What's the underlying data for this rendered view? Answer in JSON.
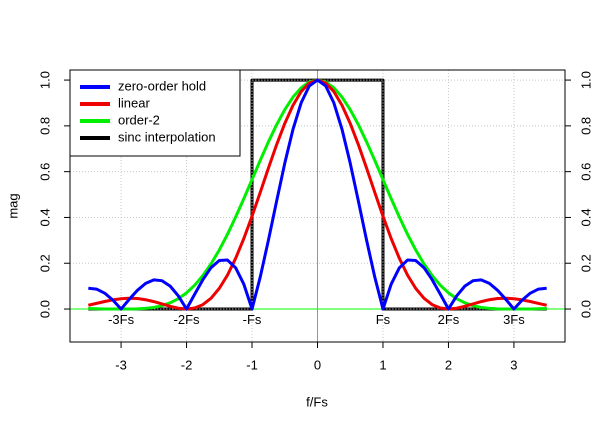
{
  "chart_data": {
    "type": "line",
    "x_label": "f/Fs",
    "y_label": "mag",
    "xlim": [
      -3.78,
      3.78
    ],
    "ylim": [
      -0.144,
      1.044
    ],
    "xticks": [
      -3,
      -2,
      -1,
      0,
      1,
      2,
      3
    ],
    "yticks": [
      {
        "value": 0,
        "label": "0.0"
      },
      {
        "value": 0.2,
        "label": "0.2"
      },
      {
        "value": 0.4,
        "label": "0.4"
      },
      {
        "value": 0.6,
        "label": "0.6"
      },
      {
        "value": 0.8,
        "label": "0.8"
      },
      {
        "value": 1,
        "label": "1.0"
      }
    ],
    "right_axis": true,
    "grid": true,
    "legend_position": "top-left",
    "reference_lines": {
      "color": "#00ff00",
      "x": 0,
      "y": 0
    },
    "annotations": [
      {
        "x": -3,
        "y": -0.05,
        "label": "-3Fs"
      },
      {
        "x": -2,
        "y": -0.05,
        "label": "-2Fs"
      },
      {
        "x": -1,
        "y": -0.05,
        "label": "-Fs"
      },
      {
        "x": 1,
        "y": -0.05,
        "label": "Fs"
      },
      {
        "x": 2,
        "y": -0.05,
        "label": "2Fs"
      },
      {
        "x": 3,
        "y": -0.05,
        "label": "3Fs"
      }
    ],
    "series": [
      {
        "name": "zero-order hold",
        "color": "#0000ff",
        "x": [
          -3.5,
          -3.375,
          -3.25,
          -3.125,
          -3,
          -2.875,
          -2.75,
          -2.625,
          -2.5,
          -2.375,
          -2.25,
          -2.125,
          -2,
          -1.875,
          -1.75,
          -1.625,
          -1.5,
          -1.375,
          -1.25,
          -1.125,
          -1,
          -0.875,
          -0.75,
          -0.625,
          -0.5,
          -0.375,
          -0.25,
          -0.125,
          0,
          0.125,
          0.25,
          0.375,
          0.5,
          0.625,
          0.75,
          0.875,
          1,
          1.125,
          1.25,
          1.375,
          1.5,
          1.625,
          1.75,
          1.875,
          2,
          2.125,
          2.25,
          2.375,
          2.5,
          2.625,
          2.75,
          2.875,
          3,
          3.125,
          3.25,
          3.375,
          3.5
        ],
        "values": [
          0.0909,
          0.0871,
          0.0693,
          0.039,
          0,
          0.0424,
          0.0818,
          0.112,
          0.1273,
          0.1238,
          0.1,
          0.0573,
          0,
          0.065,
          0.1286,
          0.181,
          0.2122,
          0.2139,
          0.1801,
          0.1083,
          0,
          0.1392,
          0.3001,
          0.4705,
          0.6366,
          0.7842,
          0.9003,
          0.9745,
          1,
          0.9745,
          0.9003,
          0.7842,
          0.6366,
          0.4705,
          0.3001,
          0.1392,
          0,
          0.1083,
          0.1801,
          0.2139,
          0.2122,
          0.181,
          0.1286,
          0.065,
          0,
          0.0573,
          0.1,
          0.1238,
          0.1273,
          0.112,
          0.0818,
          0.0424,
          0,
          0.039,
          0.0693,
          0.0871,
          0.0909
        ]
      },
      {
        "name": "linear",
        "color": "#ee0000",
        "x": [
          -3.5,
          -3.375,
          -3.25,
          -3.125,
          -3,
          -2.875,
          -2.75,
          -2.625,
          -2.5,
          -2.375,
          -2.25,
          -2.125,
          -2,
          -1.875,
          -1.75,
          -1.625,
          -1.5,
          -1.375,
          -1.25,
          -1.125,
          -1,
          -0.875,
          -0.75,
          -0.625,
          -0.5,
          -0.375,
          -0.25,
          -0.125,
          0,
          0.125,
          0.25,
          0.375,
          0.5,
          0.625,
          0.75,
          0.875,
          1,
          1.125,
          1.25,
          1.375,
          1.5,
          1.625,
          1.75,
          1.875,
          2,
          2.125,
          2.25,
          2.375,
          2.5,
          2.625,
          2.75,
          2.875,
          3,
          3.125,
          3.25,
          3.375,
          3.5
        ],
        "values": [
          0.0165,
          0.0246,
          0.0328,
          0.0399,
          0.045,
          0.0472,
          0.0458,
          0.0407,
          0.0324,
          0.0222,
          0.0117,
          0.0034,
          0,
          0.0044,
          0.0194,
          0.0474,
          0.0901,
          0.1482,
          0.2214,
          0.308,
          0.4053,
          0.5092,
          0.615,
          0.7173,
          0.8105,
          0.8895,
          0.9497,
          0.9872,
          1,
          0.9872,
          0.9497,
          0.8895,
          0.8105,
          0.7173,
          0.615,
          0.5092,
          0.4053,
          0.308,
          0.2214,
          0.1482,
          0.0901,
          0.0474,
          0.0194,
          0.0044,
          0,
          0.0034,
          0.0117,
          0.0222,
          0.0324,
          0.0407,
          0.0458,
          0.0472,
          0.045,
          0.0399,
          0.0328,
          0.0246,
          0.0165
        ]
      },
      {
        "name": "order-2",
        "color": "#00ee00",
        "x": [
          -3.5,
          -3.375,
          -3.25,
          -3.125,
          -3,
          -2.875,
          -2.75,
          -2.625,
          -2.5,
          -2.375,
          -2.25,
          -2.125,
          -2,
          -1.875,
          -1.75,
          -1.625,
          -1.5,
          -1.375,
          -1.25,
          -1.125,
          -1,
          -0.875,
          -0.75,
          -0.625,
          -0.5,
          -0.375,
          -0.25,
          -0.125,
          0,
          0.125,
          0.25,
          0.375,
          0.5,
          0.625,
          0.75,
          0.875,
          1,
          1.125,
          1.25,
          1.375,
          1.5,
          1.625,
          1.75,
          1.875,
          2,
          2.125,
          2.25,
          2.375,
          2.5,
          2.625,
          2.75,
          2.875,
          3,
          3.125,
          3.25,
          3.375,
          3.5
        ],
        "values": [
          0.0025,
          0.0013,
          0.0004,
          0.0001,
          0,
          0.0001,
          0.0007,
          0.0027,
          0.007,
          0.0147,
          0.027,
          0.0453,
          0.0707,
          0.1042,
          0.1464,
          0.1978,
          0.258,
          0.3264,
          0.4018,
          0.4823,
          0.5656,
          0.6491,
          0.7298,
          0.8047,
          0.8708,
          0.9254,
          0.9662,
          0.9915,
          1,
          0.9915,
          0.9662,
          0.9254,
          0.8708,
          0.8047,
          0.7298,
          0.6491,
          0.5656,
          0.4823,
          0.4018,
          0.3264,
          0.258,
          0.1978,
          0.1464,
          0.1042,
          0.0707,
          0.0453,
          0.027,
          0.0147,
          0.007,
          0.0027,
          0.0007,
          0.0001,
          0,
          0.0001,
          0.0004,
          0.0013,
          0.0025
        ]
      },
      {
        "name": "sinc interpolation",
        "color": "#000000",
        "x": [
          -3.5,
          -1,
          -1,
          1,
          1,
          3.5
        ],
        "values": [
          0,
          0,
          1,
          1,
          0,
          0
        ]
      }
    ]
  }
}
